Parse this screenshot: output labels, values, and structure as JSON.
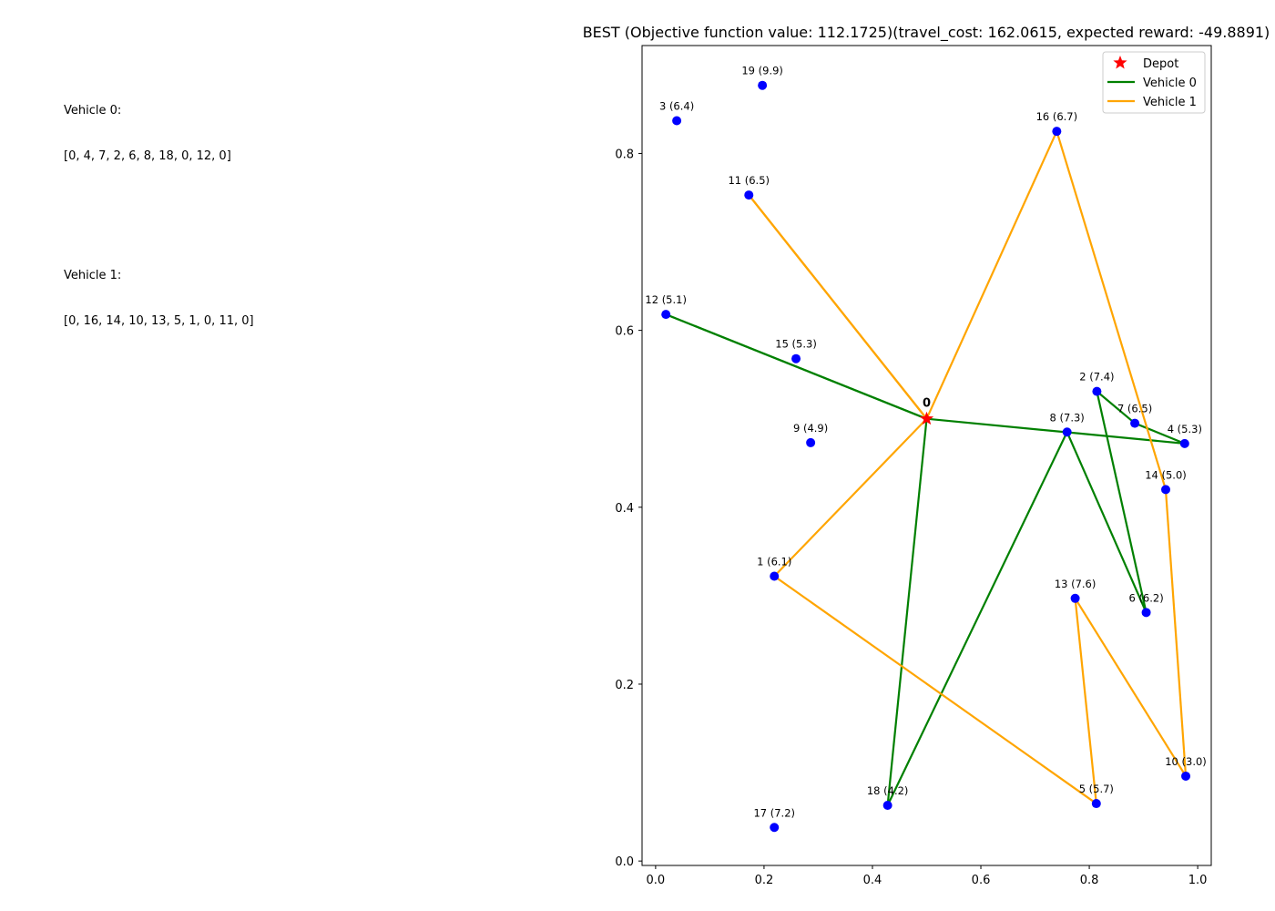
{
  "routes_panel": {
    "vehicles": [
      {
        "label": "Vehicle 0:",
        "route": "[0, 4, 7, 2, 6, 8, 18, 0, 12, 0]"
      },
      {
        "label": "Vehicle 1:",
        "route": "[0, 16, 14, 10, 13, 5, 1, 0, 11, 0]"
      }
    ]
  },
  "chart_data": {
    "type": "scatter",
    "title": "BEST (Objective function value: 112.1725)(travel_cost: 162.0615, expected reward: -49.8891)",
    "xlim": [
      -0.025,
      1.025
    ],
    "ylim": [
      -0.005,
      0.922
    ],
    "xticks": [
      "0.0",
      "0.2",
      "0.4",
      "0.6",
      "0.8",
      "1.0"
    ],
    "yticks": [
      "0.0",
      "0.2",
      "0.4",
      "0.6",
      "0.8"
    ],
    "grid": false,
    "legend_position": "top-right",
    "legend": [
      {
        "key": "depot",
        "label": "Depot",
        "color": "#ff0000",
        "kind": "star"
      },
      {
        "key": "v0",
        "label": "Vehicle 0",
        "color": "#008000",
        "kind": "line"
      },
      {
        "key": "v1",
        "label": "Vehicle 1",
        "color": "#ffa500",
        "kind": "line"
      }
    ],
    "depot": {
      "id": 0,
      "label": "0",
      "x": 0.5,
      "y": 0.5
    },
    "nodes": [
      {
        "id": 1,
        "label": "1 (6.1)",
        "x": 0.219,
        "y": 0.322
      },
      {
        "id": 2,
        "label": "2 (7.4)",
        "x": 0.814,
        "y": 0.531
      },
      {
        "id": 3,
        "label": "3 (6.4)",
        "x": 0.039,
        "y": 0.837
      },
      {
        "id": 4,
        "label": "4 (5.3)",
        "x": 0.976,
        "y": 0.472
      },
      {
        "id": 5,
        "label": "5 (5.7)",
        "x": 0.813,
        "y": 0.065
      },
      {
        "id": 6,
        "label": "6 (6.2)",
        "x": 0.905,
        "y": 0.281
      },
      {
        "id": 7,
        "label": "7 (6.5)",
        "x": 0.884,
        "y": 0.495
      },
      {
        "id": 8,
        "label": "8 (7.3)",
        "x": 0.759,
        "y": 0.485
      },
      {
        "id": 9,
        "label": "9 (4.9)",
        "x": 0.286,
        "y": 0.473
      },
      {
        "id": 10,
        "label": "10 (3.0)",
        "x": 0.978,
        "y": 0.096
      },
      {
        "id": 11,
        "label": "11 (6.5)",
        "x": 0.172,
        "y": 0.753
      },
      {
        "id": 12,
        "label": "12 (5.1)",
        "x": 0.019,
        "y": 0.618
      },
      {
        "id": 13,
        "label": "13 (7.6)",
        "x": 0.774,
        "y": 0.297
      },
      {
        "id": 14,
        "label": "14 (5.0)",
        "x": 0.941,
        "y": 0.42
      },
      {
        "id": 15,
        "label": "15 (5.3)",
        "x": 0.259,
        "y": 0.568
      },
      {
        "id": 16,
        "label": "16 (6.7)",
        "x": 0.74,
        "y": 0.825
      },
      {
        "id": 17,
        "label": "17 (7.2)",
        "x": 0.219,
        "y": 0.038
      },
      {
        "id": 18,
        "label": "18 (4.2)",
        "x": 0.428,
        "y": 0.063
      },
      {
        "id": 19,
        "label": "19 (9.9)",
        "x": 0.197,
        "y": 0.877
      }
    ],
    "series": [
      {
        "key": "v0",
        "color": "#008000",
        "route": [
          0,
          4,
          7,
          2,
          6,
          8,
          18,
          0,
          12,
          0
        ]
      },
      {
        "key": "v1",
        "color": "#ffa500",
        "route": [
          0,
          16,
          14,
          10,
          13,
          5,
          1,
          0,
          11,
          0
        ]
      }
    ],
    "node_color": "#0000ff"
  }
}
